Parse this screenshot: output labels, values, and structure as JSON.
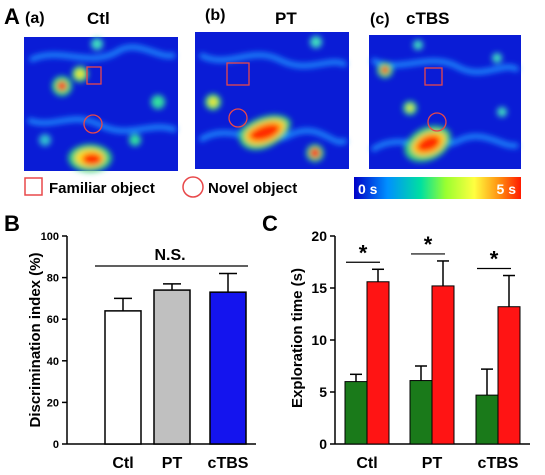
{
  "panel_labels": {
    "A": "A",
    "B": "B",
    "C": "C"
  },
  "heatmaps": [
    {
      "label": "(a)",
      "title": "Ctl"
    },
    {
      "label": "(b)",
      "title": "PT"
    },
    {
      "label": "(c)",
      "title": "cTBS"
    }
  ],
  "legend": {
    "familiar": "Familiar object",
    "novel": "Novel object",
    "scale_min": "0 s",
    "scale_max": "5 s",
    "square_color": "#e8484a",
    "circle_color": "#e8484a"
  },
  "colors": {
    "ctl_bar": "#ffffff",
    "pt_bar": "#c0c0c0",
    "ctbs_bar": "#1414ee",
    "familiar": "#1a7a1a",
    "novel": "#ff1414"
  },
  "chart_data": [
    {
      "type": "bar",
      "categories": [
        "Ctl",
        "PT",
        "cTBS"
      ],
      "values": [
        64,
        74,
        73
      ],
      "errors": [
        6,
        3,
        9
      ],
      "ylabel": "Discrimination index (%)",
      "ylim": [
        0,
        100
      ],
      "yticks": [
        0,
        20,
        40,
        60,
        80,
        100
      ],
      "annotation": "N.S."
    },
    {
      "type": "bar",
      "categories": [
        "Ctl",
        "PT",
        "cTBS"
      ],
      "series": [
        {
          "values": [
            6.0,
            6.1,
            4.7
          ],
          "errors": [
            0.7,
            1.4,
            2.5
          ]
        },
        {
          "values": [
            15.6,
            15.2,
            13.2
          ],
          "errors": [
            1.2,
            2.4,
            3.0
          ]
        }
      ],
      "ylabel": "Exploration time (s)",
      "ylim": [
        0,
        20
      ],
      "yticks": [
        0,
        5,
        10,
        15,
        20
      ],
      "annotation": "*"
    }
  ]
}
